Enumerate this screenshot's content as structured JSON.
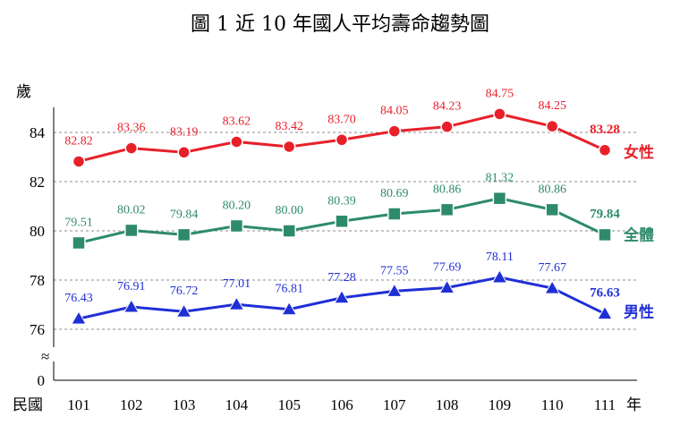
{
  "chart_data": {
    "type": "line",
    "title": "圖 1    近 10 年國人平均壽命趨勢圖",
    "ylabel": "歲",
    "x_prefix": "民國",
    "x_suffix": "年",
    "categories": [
      "101",
      "102",
      "103",
      "104",
      "105",
      "106",
      "107",
      "108",
      "109",
      "110",
      "111"
    ],
    "ylim": [
      75,
      85.5
    ],
    "y_ticks": [
      {
        "value": 84,
        "label": "84"
      },
      {
        "value": 82,
        "label": "82"
      },
      {
        "value": 80,
        "label": "80"
      },
      {
        "value": 78,
        "label": "78"
      },
      {
        "value": 76,
        "label": "76"
      }
    ],
    "y_zero_label": "0",
    "axis_break_symbol": "≈",
    "grid": "horizontal dashed",
    "series": [
      {
        "name": "女性",
        "color": "#e8202a",
        "marker": "circle",
        "values": [
          82.82,
          83.36,
          83.19,
          83.62,
          83.42,
          83.7,
          84.05,
          84.23,
          84.75,
          84.25,
          83.28
        ],
        "labels": [
          "82.82",
          "83.36",
          "83.19",
          "83.62",
          "83.42",
          "83.70",
          "84.05",
          "84.23",
          "84.75",
          "84.25",
          "83.28"
        ]
      },
      {
        "name": "全體",
        "color": "#2e8b6a",
        "marker": "square",
        "values": [
          79.51,
          80.02,
          79.84,
          80.2,
          80.0,
          80.39,
          80.69,
          80.86,
          81.32,
          80.86,
          79.84
        ],
        "labels": [
          "79.51",
          "80.02",
          "79.84",
          "80.20",
          "80.00",
          "80.39",
          "80.69",
          "80.86",
          "81.32",
          "80.86",
          "79.84"
        ]
      },
      {
        "name": "男性",
        "color": "#1f2fd6",
        "marker": "triangle",
        "values": [
          76.43,
          76.91,
          76.72,
          77.01,
          76.81,
          77.28,
          77.55,
          77.69,
          78.11,
          77.67,
          76.63
        ],
        "labels": [
          "76.43",
          "76.91",
          "76.72",
          "77.01",
          "76.81",
          "77.28",
          "77.55",
          "77.69",
          "78.11",
          "77.67",
          "76.63"
        ]
      }
    ]
  }
}
